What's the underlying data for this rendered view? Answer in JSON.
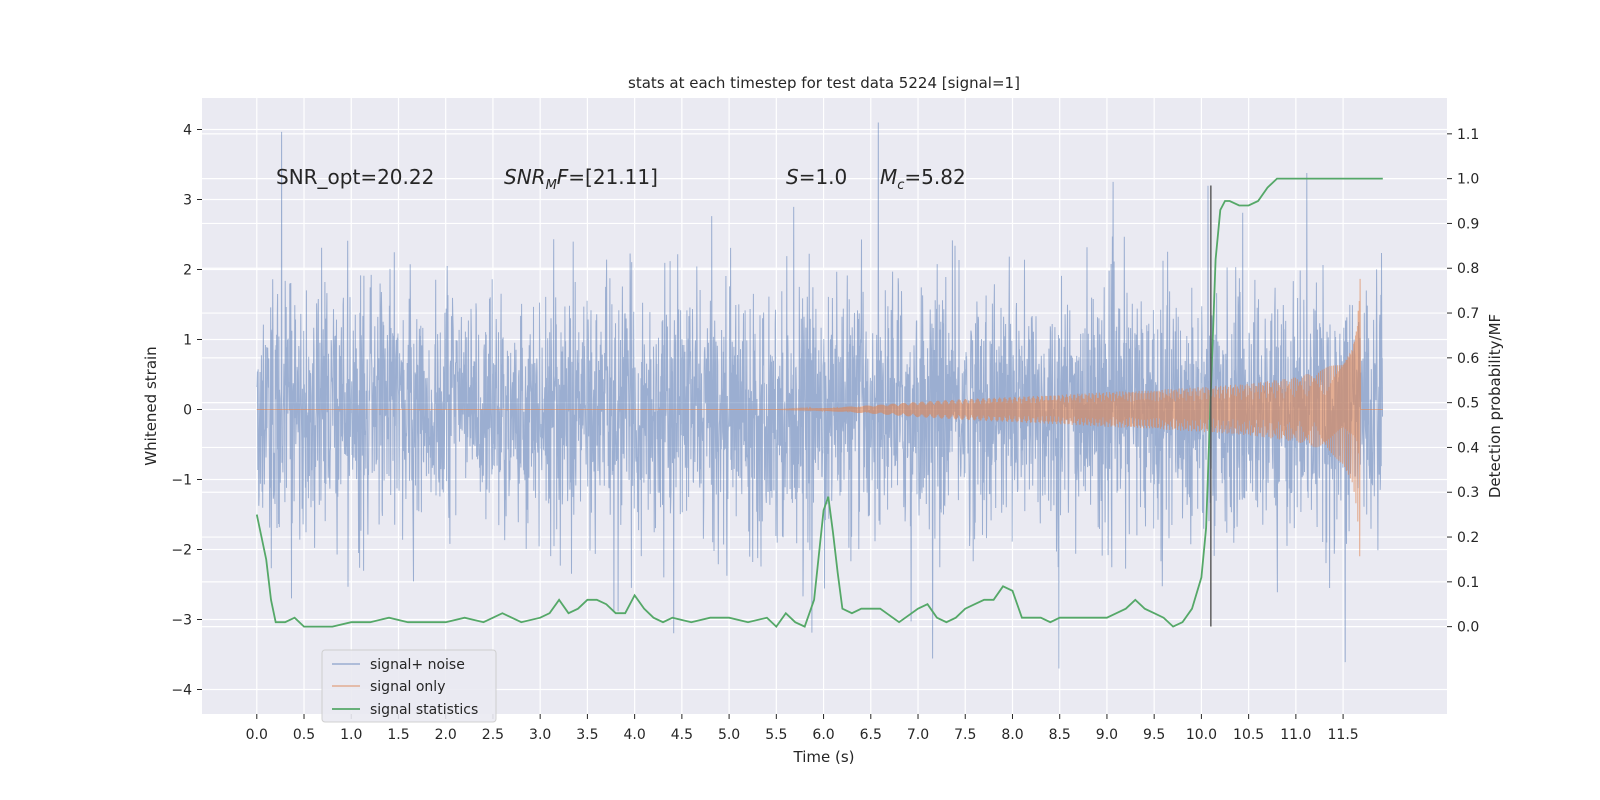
{
  "chart_data": {
    "type": "line",
    "title": "stats at each timestep for test data 5224 [signal=1]",
    "xlabel": "Time (s)",
    "ylabel_left": "Whitened strain",
    "ylabel_right": "Detection probability/MF",
    "xlim": [
      -0.58,
      12.6
    ],
    "ylim_left": [
      -4.35,
      4.45
    ],
    "ylim_right": [
      -0.195,
      1.18
    ],
    "x_ticks": [
      0.0,
      0.5,
      1.0,
      1.5,
      2.0,
      2.5,
      3.0,
      3.5,
      4.0,
      4.5,
      5.0,
      5.5,
      6.0,
      6.5,
      7.0,
      7.5,
      8.0,
      8.5,
      9.0,
      9.5,
      10.0,
      10.5,
      11.0,
      11.5
    ],
    "x_tick_labels": [
      "0.0",
      "0.5",
      "1.0",
      "1.5",
      "2.0",
      "2.5",
      "3.0",
      "3.5",
      "4.0",
      "4.5",
      "5.0",
      "5.5",
      "6.0",
      "6.5",
      "7.0",
      "7.5",
      "8.0",
      "8.5",
      "9.0",
      "9.5",
      "10.0",
      "10.5",
      "11.0",
      "11.5"
    ],
    "y_left_ticks": [
      4,
      3,
      2,
      1,
      0,
      -1,
      -2,
      -3,
      -4
    ],
    "y_left_tick_labels": [
      "4",
      "3",
      "2",
      "1",
      "0",
      "−1",
      "−2",
      "−3",
      "−4"
    ],
    "y_right_ticks": [
      1.1,
      1.0,
      0.9,
      0.8,
      0.7,
      0.6,
      0.5,
      0.4,
      0.3,
      0.2,
      0.1,
      0.0
    ],
    "y_right_tick_labels": [
      "1.1",
      "1.0",
      "0.9",
      "0.8",
      "0.7",
      "0.6",
      "0.5",
      "0.4",
      "0.3",
      "0.2",
      "0.1",
      "0.0"
    ],
    "grid": true,
    "legend_position": "lower-left",
    "series": [
      {
        "name": "signal+ noise",
        "axis": "left",
        "style": "dense-noise",
        "color": "#4c72b0",
        "opacity": 0.5,
        "x_range": [
          0.0,
          11.92
        ],
        "typical_band": [
          -1.3,
          1.3
        ],
        "max_excursion": [
          -3.7,
          4.1
        ]
      },
      {
        "name": "signal only",
        "axis": "left",
        "style": "chirp-envelope",
        "color": "#dd8452",
        "opacity": 0.6,
        "envelope_x": [
          5.5,
          6.0,
          6.5,
          7.0,
          7.5,
          8.0,
          8.5,
          9.0,
          9.5,
          10.0,
          10.5,
          11.0,
          11.3,
          11.5,
          11.6,
          11.65,
          11.68
        ],
        "envelope_amp": [
          0.0,
          0.02,
          0.06,
          0.11,
          0.15,
          0.18,
          0.21,
          0.25,
          0.28,
          0.32,
          0.37,
          0.46,
          0.58,
          0.78,
          1.05,
          1.45,
          2.2
        ]
      },
      {
        "name": "signal statistics",
        "axis": "right",
        "style": "line",
        "color": "#55a868",
        "x": [
          0.0,
          0.05,
          0.1,
          0.15,
          0.2,
          0.3,
          0.4,
          0.5,
          0.6,
          0.8,
          1.0,
          1.2,
          1.4,
          1.6,
          1.8,
          2.0,
          2.2,
          2.4,
          2.6,
          2.8,
          3.0,
          3.1,
          3.2,
          3.3,
          3.4,
          3.5,
          3.6,
          3.7,
          3.8,
          3.9,
          4.0,
          4.1,
          4.2,
          4.3,
          4.4,
          4.6,
          4.8,
          5.0,
          5.2,
          5.4,
          5.5,
          5.6,
          5.7,
          5.8,
          5.9,
          6.0,
          6.05,
          6.1,
          6.15,
          6.2,
          6.3,
          6.4,
          6.5,
          6.6,
          6.8,
          7.0,
          7.1,
          7.2,
          7.3,
          7.4,
          7.5,
          7.6,
          7.7,
          7.8,
          7.9,
          8.0,
          8.1,
          8.2,
          8.3,
          8.4,
          8.5,
          8.6,
          8.8,
          9.0,
          9.1,
          9.2,
          9.3,
          9.4,
          9.5,
          9.6,
          9.7,
          9.8,
          9.9,
          10.0,
          10.05,
          10.1,
          10.15,
          10.2,
          10.25,
          10.3,
          10.4,
          10.5,
          10.6,
          10.7,
          10.8,
          10.9,
          11.0,
          11.2,
          11.4,
          11.6,
          11.8,
          11.92
        ],
        "y": [
          0.25,
          0.2,
          0.15,
          0.06,
          0.01,
          0.01,
          0.02,
          0.0,
          0.0,
          0.0,
          0.01,
          0.01,
          0.02,
          0.01,
          0.01,
          0.01,
          0.02,
          0.01,
          0.03,
          0.01,
          0.02,
          0.03,
          0.06,
          0.03,
          0.04,
          0.06,
          0.06,
          0.05,
          0.03,
          0.03,
          0.07,
          0.04,
          0.02,
          0.01,
          0.02,
          0.01,
          0.02,
          0.02,
          0.01,
          0.02,
          0.0,
          0.03,
          0.01,
          0.0,
          0.06,
          0.26,
          0.29,
          0.21,
          0.12,
          0.04,
          0.03,
          0.04,
          0.04,
          0.04,
          0.01,
          0.04,
          0.05,
          0.02,
          0.01,
          0.02,
          0.04,
          0.05,
          0.06,
          0.06,
          0.09,
          0.08,
          0.02,
          0.02,
          0.02,
          0.01,
          0.02,
          0.02,
          0.02,
          0.02,
          0.03,
          0.04,
          0.06,
          0.04,
          0.03,
          0.02,
          0.0,
          0.01,
          0.04,
          0.11,
          0.22,
          0.52,
          0.82,
          0.93,
          0.95,
          0.95,
          0.94,
          0.94,
          0.95,
          0.98,
          1.0,
          1.0,
          1.0,
          1.0,
          1.0,
          1.0,
          1.0,
          1.0
        ]
      }
    ],
    "vertical_marker": {
      "x": 10.1,
      "ylim_left": [
        -3.1,
        3.2
      ],
      "color": "#555555"
    },
    "annotations": [
      {
        "label": "SNR_opt=20.22"
      },
      {
        "main": "SNR",
        "sub": "M",
        "rest": "F=[21.11]"
      },
      {
        "main": "S",
        "rest": "=1.0"
      },
      {
        "main": "M",
        "sub": "c",
        "rest": "=5.82"
      }
    ]
  }
}
